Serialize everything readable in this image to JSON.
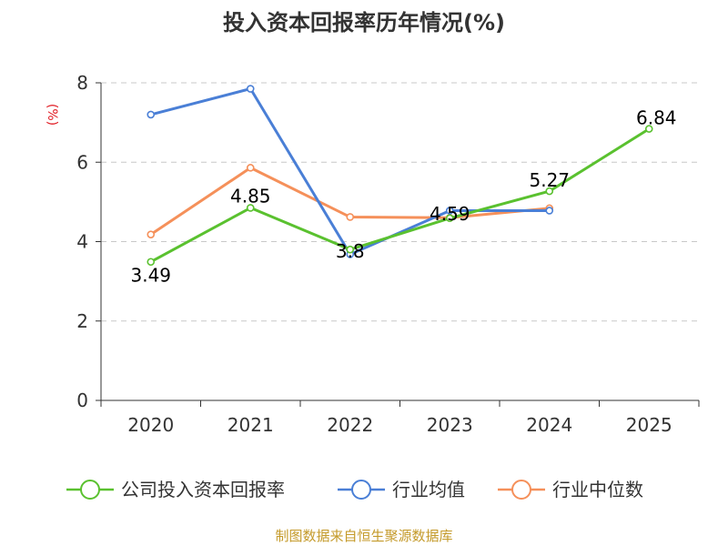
{
  "chart_data": {
    "type": "line",
    "title": "投入资本回报率历年情况(%)",
    "ylabel": "(%)",
    "xlabel": "",
    "categories": [
      "2020",
      "2021",
      "2022",
      "2023",
      "2024",
      "2025"
    ],
    "ylim": [
      0,
      8
    ],
    "yticks": [
      0,
      2,
      4,
      6,
      8
    ],
    "grid": true,
    "legend_position": "bottom",
    "series": [
      {
        "name": "公司投入资本回报率",
        "color": "#5ac12f",
        "values": [
          3.49,
          4.85,
          3.8,
          4.59,
          5.27,
          6.84
        ],
        "labels": [
          "3.49",
          "4.85",
          "3.8",
          "4.59",
          "5.27",
          "6.84"
        ]
      },
      {
        "name": "行业均值",
        "color": "#4a7fd6",
        "values": [
          7.2,
          7.85,
          3.68,
          4.78,
          4.78,
          null
        ]
      },
      {
        "name": "行业中位数",
        "color": "#f5905a",
        "values": [
          4.18,
          5.86,
          4.62,
          4.6,
          4.84,
          null
        ]
      }
    ],
    "source": "制图数据来自恒生聚源数据库"
  }
}
